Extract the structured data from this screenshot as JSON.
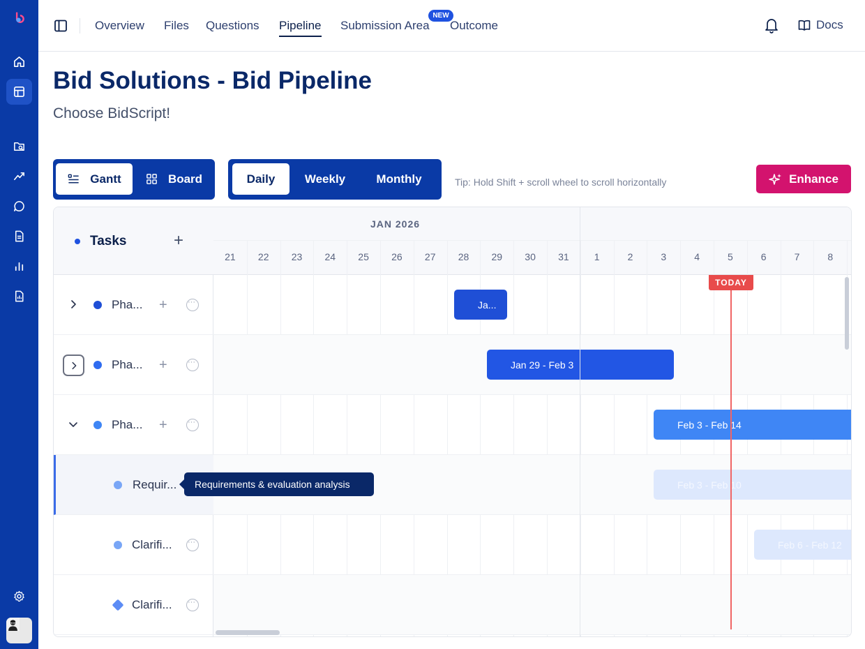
{
  "nav": {
    "tabs": [
      {
        "label": "Overview"
      },
      {
        "label": "Files"
      },
      {
        "label": "Questions"
      },
      {
        "label": "Pipeline"
      },
      {
        "label": "Submission Area"
      },
      {
        "label": "Outcome"
      }
    ],
    "active_tab": "Pipeline",
    "new_badge": "NEW",
    "docs_label": "Docs"
  },
  "page": {
    "title": "Bid Solutions - Bid Pipeline",
    "subtitle": "Choose BidScript!"
  },
  "toolbar": {
    "view_options": [
      "Gantt",
      "Board"
    ],
    "selected_view": "Gantt",
    "scale_options": [
      "Daily",
      "Weekly",
      "Monthly"
    ],
    "selected_scale": "Daily",
    "tip": "Tip: Hold Shift + scroll wheel to scroll horizontally",
    "enhance_label": "Enhance"
  },
  "gantt": {
    "tasks_header": "Tasks",
    "month_label": "JAN 2026",
    "days": [
      "21",
      "22",
      "23",
      "24",
      "25",
      "26",
      "27",
      "28",
      "29",
      "30",
      "31",
      "1",
      "2",
      "3",
      "4",
      "5",
      "6",
      "7",
      "8"
    ],
    "today_label": "TODAY",
    "today_day": "5",
    "rows": [
      {
        "name": "Pha...",
        "bar_label": "Ja..."
      },
      {
        "name": "Pha...",
        "bar_label": "Jan 29 - Feb 3"
      },
      {
        "name": "Pha...",
        "bar_label": "Feb 3 - Feb 14"
      },
      {
        "name": "Requir...",
        "bar_label": "Feb 3 - Feb 10"
      },
      {
        "name": "Clarifi...",
        "bar_label": "Feb 6 - Feb 12"
      },
      {
        "name": "Clarifi...",
        "bar_label": ""
      }
    ],
    "tooltip": "Requirements & evaluation analysis"
  },
  "colors": {
    "rail": "#0a3aa6",
    "bar_dark": "#1f4fd6",
    "bar_mid": "#2f6cf0",
    "bar_light": "#3f86f5",
    "bar_pale": "#dde8fd",
    "today": "#e84b4b",
    "enhance": "#d3136e"
  },
  "icons": {
    "rail": [
      "logo-icon",
      "home-icon",
      "board-icon",
      "search-file-icon",
      "trend-icon",
      "chat-icon",
      "document-icon",
      "bar-chart-icon",
      "report-icon",
      "settings-icon"
    ],
    "top": [
      "sidebar-toggle-icon",
      "bell-icon",
      "book-icon"
    ]
  }
}
